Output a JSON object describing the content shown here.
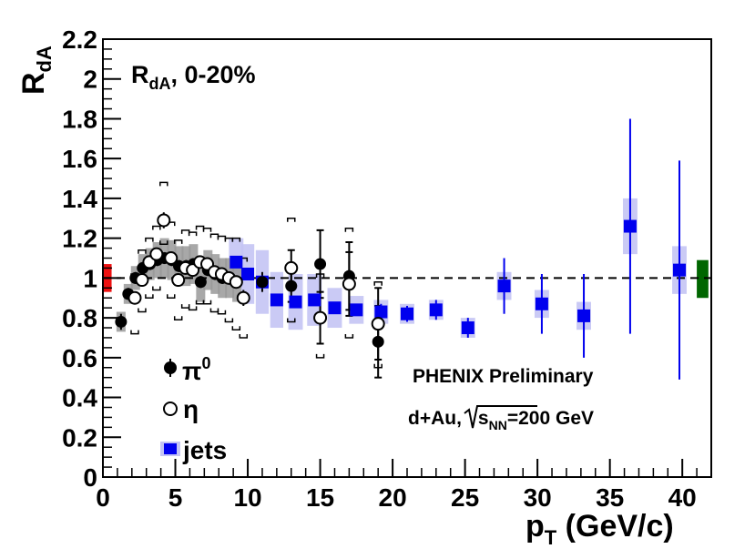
{
  "chart_data": {
    "type": "scatter",
    "title": "R_dA, 0-20%",
    "title_main": "R",
    "title_sub": "dA",
    "title_suffix": ", 0-20%",
    "ylabel_main": "R",
    "ylabel_sub": "dA",
    "xlabel_main": "p",
    "xlabel_sub": "T",
    "xlabel_suffix": " (GeV/c)",
    "xlim": [
      0,
      42
    ],
    "ylim": [
      0,
      2.2
    ],
    "x_ticks": [
      0,
      5,
      10,
      15,
      20,
      25,
      30,
      35,
      40
    ],
    "x_tick_labels": [
      "0",
      "5",
      "10",
      "15",
      "20",
      "25",
      "30",
      "35",
      "40"
    ],
    "y_ticks": [
      0,
      0.2,
      0.4,
      0.6,
      0.8,
      1,
      1.2,
      1.4,
      1.6,
      1.8,
      2,
      2.2
    ],
    "y_tick_labels": [
      "0",
      "0.2",
      "0.4",
      "0.6",
      "0.8",
      "1",
      "1.2",
      "1.4",
      "1.6",
      "1.8",
      "2",
      "2.2"
    ],
    "reference_line": 1.0,
    "annotation_1": "PHENIX Preliminary",
    "annotation_2_prefix": "d+Au,",
    "annotation_2_s": "s",
    "annotation_2_sub": "NN",
    "annotation_2_suffix": "=200 GeV",
    "left_norm_box": {
      "y_low": 0.93,
      "y_high": 1.07,
      "color": "#ee1111"
    },
    "right_norm_box": {
      "y_low": 0.9,
      "y_high": 1.09,
      "color": "#006600"
    },
    "series": [
      {
        "name": "pi0",
        "legend_main": "π",
        "legend_sup": "0",
        "marker": "filled-circle",
        "color": "#000000",
        "sys_color": "#999999",
        "points": [
          {
            "x": 1.25,
            "y": 0.78,
            "stat": 0.04,
            "sys": 0.05
          },
          {
            "x": 1.75,
            "y": 0.92,
            "stat": 0.03,
            "sys": 0.05
          },
          {
            "x": 2.25,
            "y": 1.0,
            "stat": 0.03,
            "sys": 0.06
          },
          {
            "x": 2.75,
            "y": 1.05,
            "stat": 0.03,
            "sys": 0.07
          },
          {
            "x": 3.25,
            "y": 1.07,
            "stat": 0.03,
            "sys": 0.08
          },
          {
            "x": 3.75,
            "y": 1.09,
            "stat": 0.03,
            "sys": 0.09
          },
          {
            "x": 4.25,
            "y": 1.1,
            "stat": 0.03,
            "sys": 0.1
          },
          {
            "x": 4.75,
            "y": 1.09,
            "stat": 0.03,
            "sys": 0.1
          },
          {
            "x": 5.25,
            "y": 1.06,
            "stat": 0.03,
            "sys": 0.1
          },
          {
            "x": 5.75,
            "y": 1.06,
            "stat": 0.03,
            "sys": 0.1
          },
          {
            "x": 6.25,
            "y": 1.07,
            "stat": 0.03,
            "sys": 0.1
          },
          {
            "x": 6.75,
            "y": 0.98,
            "stat": 0.03,
            "sys": 0.1
          },
          {
            "x": 7.25,
            "y": 1.04,
            "stat": 0.03,
            "sys": 0.1
          },
          {
            "x": 7.75,
            "y": 1.02,
            "stat": 0.03,
            "sys": 0.1
          },
          {
            "x": 8.25,
            "y": 1.0,
            "stat": 0.03,
            "sys": 0.1
          },
          {
            "x": 8.75,
            "y": 1.0,
            "stat": 0.03,
            "sys": 0.1
          },
          {
            "x": 9.25,
            "y": 0.98,
            "stat": 0.03,
            "sys": 0.1
          },
          {
            "x": 11.0,
            "y": 0.98,
            "stat": 0.05,
            "sys": 0.1
          },
          {
            "x": 13.0,
            "y": 0.96,
            "stat": 0.08,
            "sys": 0.1
          },
          {
            "x": 15.0,
            "y": 1.07,
            "stat": 0.17,
            "sys": 0.1
          },
          {
            "x": 17.0,
            "y": 1.01,
            "stat": 0.17,
            "sys": 0.1
          },
          {
            "x": 19.0,
            "y": 0.68,
            "stat": 0.18,
            "sys": 0.1
          }
        ]
      },
      {
        "name": "eta",
        "legend_main": "η",
        "marker": "open-circle",
        "color": "#000000",
        "points": [
          {
            "x": 2.2,
            "y": 0.9,
            "stat": 0.03,
            "sys_low": 0.72,
            "sys_high": 1.02
          },
          {
            "x": 2.7,
            "y": 0.99,
            "stat": 0.03,
            "sys_low": 0.83,
            "sys_high": 1.14
          },
          {
            "x": 3.2,
            "y": 1.08,
            "stat": 0.03,
            "sys_low": 0.9,
            "sys_high": 1.2
          },
          {
            "x": 3.7,
            "y": 1.12,
            "stat": 0.03,
            "sys_low": 0.94,
            "sys_high": 1.26
          },
          {
            "x": 4.2,
            "y": 1.29,
            "stat": 0.04,
            "sys_low": 1.17,
            "sys_high": 1.48
          },
          {
            "x": 4.7,
            "y": 1.1,
            "stat": 0.03,
            "sys_low": 0.9,
            "sys_high": 1.28
          },
          {
            "x": 5.2,
            "y": 0.99,
            "stat": 0.03,
            "sys_low": 0.79,
            "sys_high": 1.19
          },
          {
            "x": 5.7,
            "y": 1.05,
            "stat": 0.03,
            "sys_low": 0.85,
            "sys_high": 1.24
          },
          {
            "x": 6.2,
            "y": 1.04,
            "stat": 0.03,
            "sys_low": 0.84,
            "sys_high": 1.23
          },
          {
            "x": 6.7,
            "y": 1.08,
            "stat": 0.03,
            "sys_low": 0.87,
            "sys_high": 1.26
          },
          {
            "x": 7.2,
            "y": 1.07,
            "stat": 0.03,
            "sys_low": 0.87,
            "sys_high": 1.25
          },
          {
            "x": 7.7,
            "y": 1.03,
            "stat": 0.03,
            "sys_low": 0.83,
            "sys_high": 1.22
          },
          {
            "x": 8.2,
            "y": 1.02,
            "stat": 0.03,
            "sys_low": 0.82,
            "sys_high": 1.21
          },
          {
            "x": 8.7,
            "y": 1.0,
            "stat": 0.03,
            "sys_low": 0.78,
            "sys_high": 1.2
          },
          {
            "x": 9.2,
            "y": 0.98,
            "stat": 0.03,
            "sys_low": 0.74,
            "sys_high": 1.2
          },
          {
            "x": 9.7,
            "y": 0.9,
            "stat": 0.04,
            "sys_low": 0.7,
            "sys_high": 1.1
          },
          {
            "x": 13.0,
            "y": 1.05,
            "stat": 0.09,
            "sys_low": 0.78,
            "sys_high": 1.3
          },
          {
            "x": 15.0,
            "y": 0.8,
            "stat": 0.13,
            "sys_low": 0.6,
            "sys_high": 1.02
          },
          {
            "x": 17.0,
            "y": 0.97,
            "stat": 0.16,
            "sys_low": 0.7,
            "sys_high": 1.25
          },
          {
            "x": 19.0,
            "y": 0.77,
            "stat": 0.18,
            "sys_low": 0.55,
            "sys_high": 0.98
          }
        ]
      },
      {
        "name": "jets",
        "legend_main": "jets",
        "marker": "filled-square",
        "color": "#0000ee",
        "sys_color": "#c4c4f4",
        "points": [
          {
            "x": 9.2,
            "y": 1.08,
            "stat": 0.03,
            "sys": 0.12,
            "hw": 0.5
          },
          {
            "x": 10.0,
            "y": 1.02,
            "stat": 0.03,
            "sys": 0.15,
            "hw": 0.45
          },
          {
            "x": 11.0,
            "y": 0.98,
            "stat": 0.03,
            "sys": 0.16,
            "hw": 0.45
          },
          {
            "x": 12.0,
            "y": 0.89,
            "stat": 0.03,
            "sys": 0.14,
            "hw": 0.45
          },
          {
            "x": 13.3,
            "y": 0.88,
            "stat": 0.03,
            "sys": 0.14,
            "hw": 0.5
          },
          {
            "x": 14.6,
            "y": 0.89,
            "stat": 0.03,
            "sys": 0.13,
            "hw": 0.5
          },
          {
            "x": 16.0,
            "y": 0.85,
            "stat": 0.03,
            "sys": 0.1,
            "hw": 0.5
          },
          {
            "x": 17.5,
            "y": 0.84,
            "stat": 0.03,
            "sys": 0.07,
            "hw": 0.5
          },
          {
            "x": 19.2,
            "y": 0.83,
            "stat": 0.04,
            "sys": 0.06,
            "hw": 0.5
          },
          {
            "x": 21.0,
            "y": 0.82,
            "stat": 0.04,
            "sys": 0.05,
            "hw": 0.5
          },
          {
            "x": 23.0,
            "y": 0.84,
            "stat": 0.05,
            "sys": 0.05,
            "hw": 0.5
          },
          {
            "x": 25.2,
            "y": 0.75,
            "stat": 0.05,
            "sys": 0.05,
            "hw": 0.5
          },
          {
            "x": 27.7,
            "y": 0.96,
            "stat": 0.14,
            "sys": 0.07,
            "hw": 0.5
          },
          {
            "x": 30.3,
            "y": 0.87,
            "stat": 0.15,
            "sys": 0.07,
            "hw": 0.5
          },
          {
            "x": 33.2,
            "y": 0.81,
            "stat": 0.21,
            "sys": 0.07,
            "hw": 0.5
          },
          {
            "x": 36.4,
            "y": 1.26,
            "stat": 0.54,
            "sys": 0.14,
            "hw": 0.5
          },
          {
            "x": 39.8,
            "y": 1.04,
            "stat": 0.55,
            "sys": 0.12,
            "hw": 0.5
          }
        ]
      }
    ]
  }
}
